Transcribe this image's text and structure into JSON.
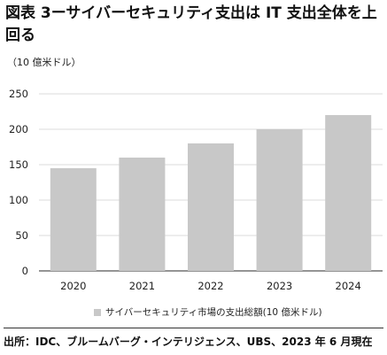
{
  "chart_data": {
    "type": "bar",
    "title": "図表 3ーサイバーセキュリティ支出は IT 支出全体を上回る",
    "subtitle": "（10 億米ドル）",
    "categories": [
      "2020",
      "2021",
      "2022",
      "2023",
      "2024"
    ],
    "series": [
      {
        "name": "サイバーセキュリティ市場の支出総額(10 億米ドル)",
        "values": [
          145,
          160,
          180,
          200,
          220
        ]
      }
    ],
    "ylim": [
      0,
      250
    ],
    "yticks": [
      0,
      50,
      100,
      150,
      200,
      250
    ],
    "grid": true,
    "legend_position": "bottom",
    "colors": {
      "bar": "#c8c8c8",
      "grid": "#cfcfcf",
      "baseline": "#555555"
    }
  },
  "source": "出所：IDC、ブルームバーグ・インテリジェンス、UBS、2023 年 6 月現在"
}
